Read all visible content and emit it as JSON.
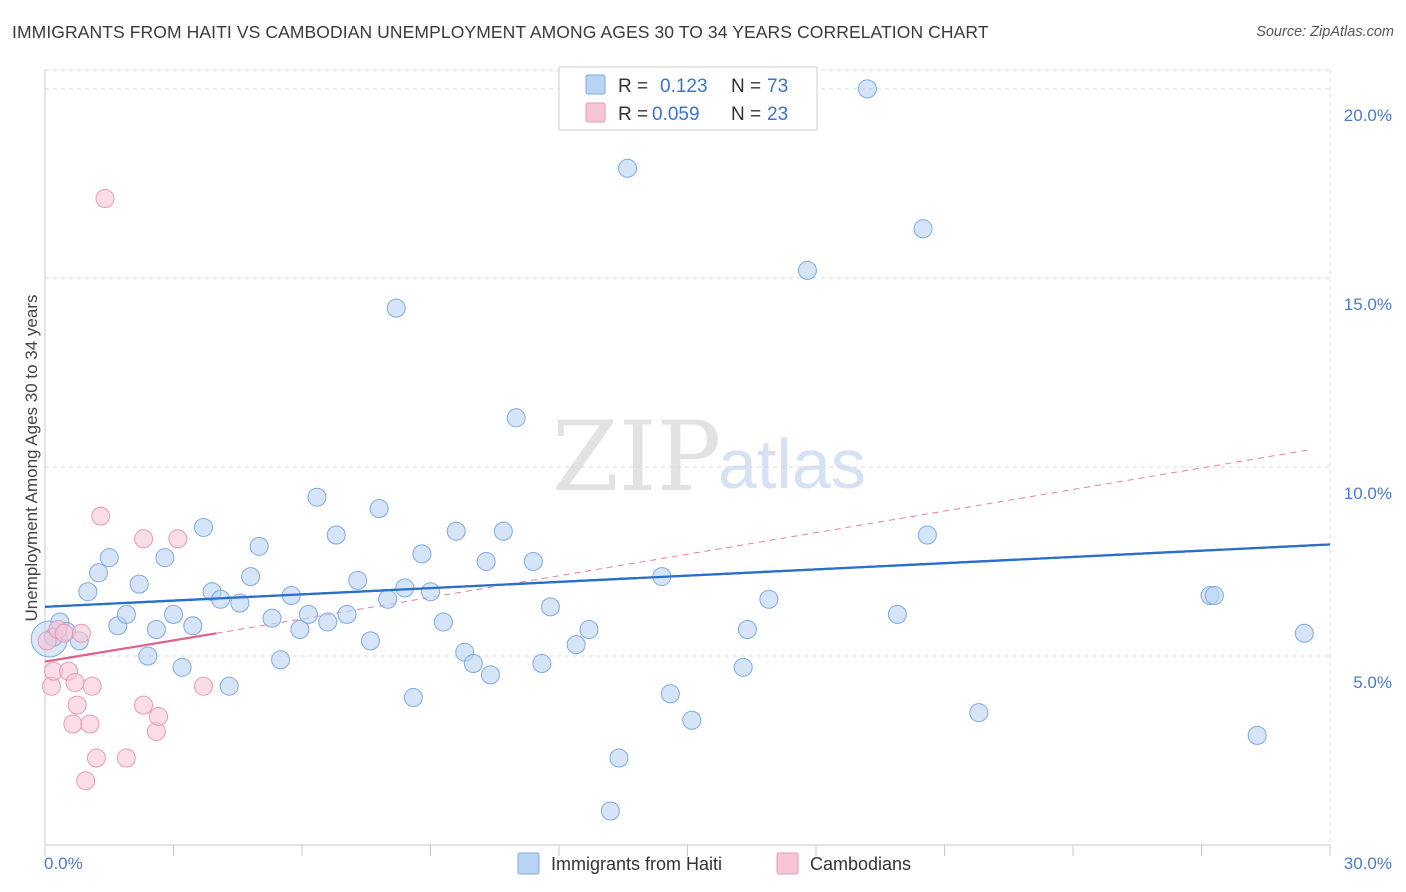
{
  "header": {
    "title": "IMMIGRANTS FROM HAITI VS CAMBODIAN UNEMPLOYMENT AMONG AGES 30 TO 34 YEARS CORRELATION CHART",
    "source": "Source: ZipAtlas.com"
  },
  "watermark": {
    "zip": "ZIP",
    "atlas": "atlas"
  },
  "colors": {
    "blue_fill": "#b9d3f2",
    "blue_stroke": "#7ea9e0",
    "blue_line": "#2a6fcb",
    "pink_fill": "#f7c6d5",
    "pink_stroke": "#e99ab3",
    "pink_line": "#e0608a",
    "grid": "#d9d9d9",
    "axis_text": "#4a7cc9"
  },
  "chart_data": {
    "type": "scatter",
    "title": "IMMIGRANTS FROM HAITI VS CAMBODIAN UNEMPLOYMENT AMONG AGES 30 TO 34 YEARS CORRELATION CHART",
    "xlabel": "",
    "ylabel": "Unemployment Among Ages 30 to 34 years",
    "xlim": [
      0,
      30
    ],
    "ylim": [
      0,
      20.5
    ],
    "x_tick_labels": [
      "0.0%",
      "30.0%"
    ],
    "y_ticks": [
      5,
      10,
      15,
      20
    ],
    "y_tick_labels": [
      "5.0%",
      "10.0%",
      "15.0%",
      "20.0%"
    ],
    "grid": true,
    "legend_position": "top-center",
    "legend": [
      {
        "series": "Immigrants from Haiti",
        "r_label": "R =",
        "r_value": "0.123",
        "n_label": "N =",
        "n_value": "73"
      },
      {
        "series": "Cambodians",
        "r_label": "R =",
        "r_value": "0.059",
        "n_label": "N =",
        "n_value": "23"
      }
    ],
    "series": [
      {
        "name": "Immigrants from Haiti",
        "color": "blue",
        "trend": {
          "x": [
            0,
            30
          ],
          "y": [
            6.3,
            7.95
          ],
          "style": "solid"
        },
        "points": [
          [
            0.2,
            5.5
          ],
          [
            0.35,
            5.9
          ],
          [
            0.5,
            5.65
          ],
          [
            0.8,
            5.4
          ],
          [
            1.0,
            6.7
          ],
          [
            1.25,
            7.2
          ],
          [
            1.5,
            7.6
          ],
          [
            1.7,
            5.8
          ],
          [
            1.9,
            6.1
          ],
          [
            2.2,
            6.9
          ],
          [
            2.4,
            5.0
          ],
          [
            2.6,
            5.7
          ],
          [
            2.8,
            7.6
          ],
          [
            3.0,
            6.1
          ],
          [
            3.2,
            4.7
          ],
          [
            3.45,
            5.8
          ],
          [
            3.7,
            8.4
          ],
          [
            3.9,
            6.7
          ],
          [
            4.1,
            6.5
          ],
          [
            4.3,
            4.2
          ],
          [
            4.55,
            6.4
          ],
          [
            4.8,
            7.1
          ],
          [
            5.0,
            7.9
          ],
          [
            5.3,
            6.0
          ],
          [
            5.5,
            4.9
          ],
          [
            5.75,
            6.6
          ],
          [
            5.95,
            5.7
          ],
          [
            6.15,
            6.1
          ],
          [
            6.35,
            9.2
          ],
          [
            6.6,
            5.9
          ],
          [
            6.8,
            8.2
          ],
          [
            7.05,
            6.1
          ],
          [
            7.3,
            7.0
          ],
          [
            7.6,
            5.4
          ],
          [
            7.8,
            8.9
          ],
          [
            8.0,
            6.5
          ],
          [
            8.2,
            14.2
          ],
          [
            8.4,
            6.8
          ],
          [
            8.6,
            3.9
          ],
          [
            8.8,
            7.7
          ],
          [
            9.0,
            6.7
          ],
          [
            9.3,
            5.9
          ],
          [
            9.6,
            8.3
          ],
          [
            9.8,
            5.1
          ],
          [
            10.0,
            4.8
          ],
          [
            10.3,
            7.5
          ],
          [
            10.4,
            4.5
          ],
          [
            10.7,
            8.3
          ],
          [
            11.0,
            11.3
          ],
          [
            11.4,
            7.5
          ],
          [
            11.6,
            4.8
          ],
          [
            11.8,
            6.3
          ],
          [
            12.4,
            5.3
          ],
          [
            12.7,
            5.7
          ],
          [
            13.4,
            2.3
          ],
          [
            13.6,
            17.9
          ],
          [
            13.2,
            0.9
          ],
          [
            14.4,
            7.1
          ],
          [
            14.6,
            4.0
          ],
          [
            15.1,
            3.3
          ],
          [
            16.3,
            4.7
          ],
          [
            16.4,
            5.7
          ],
          [
            16.9,
            6.5
          ],
          [
            17.8,
            15.2
          ],
          [
            19.2,
            20.0
          ],
          [
            19.9,
            6.1
          ],
          [
            20.5,
            16.3
          ],
          [
            20.6,
            8.2
          ],
          [
            21.8,
            3.5
          ],
          [
            27.2,
            6.6
          ],
          [
            27.3,
            6.6
          ],
          [
            28.3,
            2.9
          ],
          [
            29.4,
            5.6
          ]
        ]
      },
      {
        "name": "Cambodians",
        "color": "pink",
        "trend": {
          "x": [
            0,
            4.0
          ],
          "y": [
            4.85,
            5.6
          ],
          "style": "solid"
        },
        "trend_extended": {
          "x": [
            4.0,
            29.5
          ],
          "y": [
            5.6,
            10.45
          ],
          "style": "dashed"
        },
        "points": [
          [
            0.05,
            5.4
          ],
          [
            0.15,
            4.2
          ],
          [
            0.2,
            4.6
          ],
          [
            0.3,
            5.7
          ],
          [
            0.45,
            5.6
          ],
          [
            0.55,
            4.6
          ],
          [
            0.65,
            3.2
          ],
          [
            0.7,
            4.3
          ],
          [
            0.75,
            3.7
          ],
          [
            0.85,
            5.6
          ],
          [
            0.95,
            1.7
          ],
          [
            1.05,
            3.2
          ],
          [
            1.1,
            4.2
          ],
          [
            1.2,
            2.3
          ],
          [
            1.3,
            8.7
          ],
          [
            1.4,
            17.1
          ],
          [
            1.9,
            2.3
          ],
          [
            2.3,
            8.1
          ],
          [
            2.3,
            3.7
          ],
          [
            2.6,
            3.0
          ],
          [
            2.65,
            3.4
          ],
          [
            3.1,
            8.1
          ],
          [
            3.7,
            4.2
          ]
        ]
      }
    ]
  },
  "bottom_legend": {
    "items": [
      "Immigrants from Haiti",
      "Cambodians"
    ]
  }
}
